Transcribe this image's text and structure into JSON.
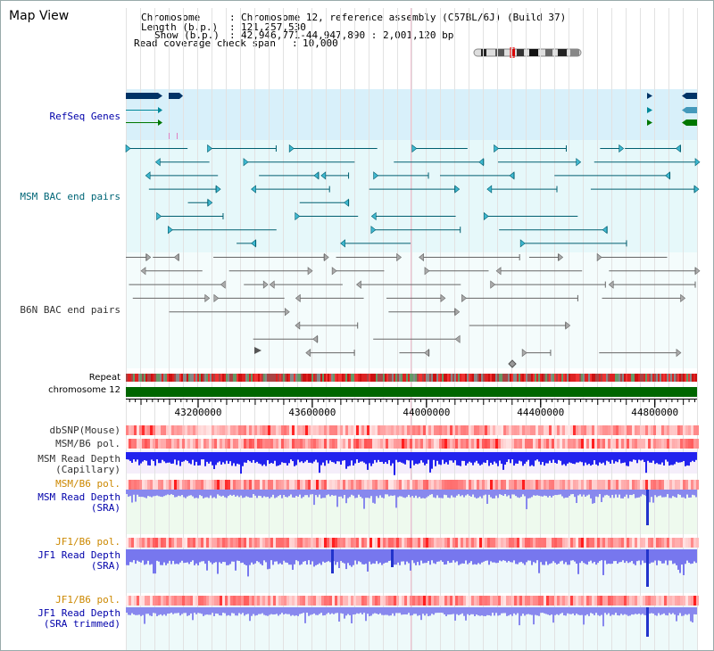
{
  "window_title": "Map View",
  "header": {
    "chromosome_key": "Chromosome",
    "chromosome_value": "Chromosome 12, reference assembly (C57BL/6J) (Build 37)",
    "length_key": "Length (b.p.)",
    "length_value": "121,257,530",
    "show_key": "Show (b.p.)",
    "show_value": "42,946,771-44,947,890 : 2,001,120 bp",
    "coverage_key": "Read coverage check span",
    "coverage_value": "10,000"
  },
  "tracks": {
    "refseq": "RefSeq Genes",
    "msm_bac": "MSM BAC end pairs",
    "b6n_bac": "B6N BAC end pairs",
    "repeat": "Repeat",
    "chromosome": "chromosome 12",
    "dbsnp": "dbSNP(Mouse)",
    "msm_b6_pol_1": "MSM/B6 pol.",
    "msm_read_depth_cap_1": "MSM Read Depth",
    "msm_read_depth_cap_2": "(Capillary)",
    "msm_b6_pol_2": "MSM/B6 pol.",
    "msm_read_depth_sra_1": "MSM Read Depth",
    "msm_read_depth_sra_2": "(SRA)",
    "jf1_b6_pol_1": "JF1/B6 pol.",
    "jf1_read_depth_sra_1": "JF1 Read Depth",
    "jf1_read_depth_sra_2": "(SRA)",
    "jf1_b6_pol_2": "JF1/B6 pol.",
    "jf1_read_depth_trim_1": "JF1 Read Depth",
    "jf1_read_depth_trim_2": "(SRA trimmed)"
  },
  "axis": {
    "ticks": [
      "43200000",
      "43600000",
      "44000000",
      "44400000",
      "44800000"
    ],
    "tick_values": [
      43200000,
      43600000,
      44000000,
      44400000,
      44800000
    ],
    "range": [
      42946771,
      44947890
    ]
  },
  "colors": {
    "label_blue": "#0000aa",
    "label_teal": "#006677",
    "label_orange": "#cc8800",
    "refseq_bg": "#d8f0fa",
    "bac_bg": "#e6f8fa",
    "gene_dark": "#003366",
    "gene_teal": "#008899",
    "gene_green": "#007700",
    "chromosome": "#006600",
    "depth_blue": "#2222ee",
    "depth_light": "#8888ee",
    "depth_bg_pink": "#f5eefa",
    "depth_bg_green": "#eefaee"
  }
}
